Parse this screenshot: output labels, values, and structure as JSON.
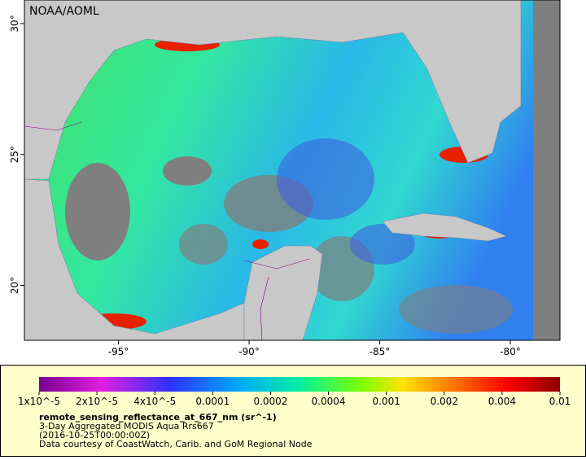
{
  "map": {
    "credit": "NOAA/AOML",
    "lon_lim": [
      -98.6,
      -78.1
    ],
    "lat_lim": [
      17.9,
      30.9
    ],
    "lon_ticks": [
      {
        "value": -95,
        "label": "-95°"
      },
      {
        "value": -90,
        "label": "-90°"
      },
      {
        "value": -85,
        "label": "-85°"
      },
      {
        "value": -80,
        "label": "-80°"
      }
    ],
    "lat_ticks": [
      {
        "value": 20,
        "label": "20°"
      },
      {
        "value": 25,
        "label": "25°"
      },
      {
        "value": 30,
        "label": "30°"
      }
    ]
  },
  "legend": {
    "colorbar_ticks": [
      {
        "value": 1e-05,
        "label": "1x10^-5"
      },
      {
        "value": 2e-05,
        "label": "2x10^-5"
      },
      {
        "value": 4e-05,
        "label": "4x10^-5"
      },
      {
        "value": 0.0001,
        "label": "0.0001"
      },
      {
        "value": 0.0002,
        "label": "0.0002"
      },
      {
        "value": 0.0004,
        "label": "0.0004"
      },
      {
        "value": 0.001,
        "label": "0.001"
      },
      {
        "value": 0.002,
        "label": "0.002"
      },
      {
        "value": 0.004,
        "label": "0.004"
      },
      {
        "value": 0.01,
        "label": "0.01"
      }
    ],
    "variable": "remote_sensing_reflectance_at_667_nm (sr^-1)",
    "description": "3-Day Aggregated MODIS Aqua Rrs667",
    "time": "(2016-10-25T00:00:00Z)",
    "courtesy": "Data courtesy of CoastWatch, Carib. and GoM Regional Node"
  }
}
